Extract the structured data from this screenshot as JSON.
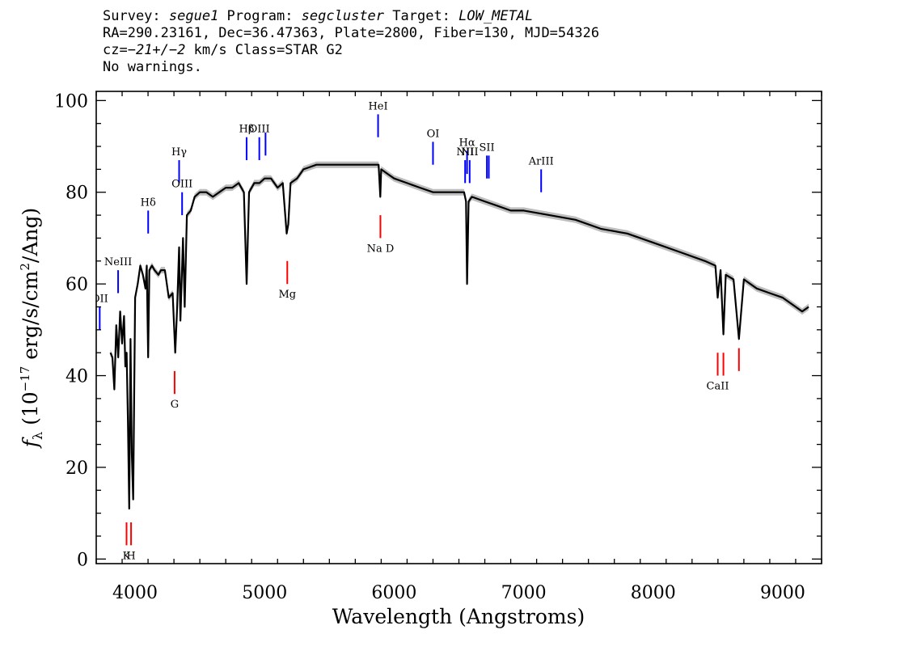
{
  "header": {
    "line1_parts": [
      "Survey: ",
      "segue1",
      " Program: ",
      "segcluster",
      " Target: ",
      "LOW_METAL"
    ],
    "line2": "RA=290.23161, Dec=36.47363, Plate=2800, Fiber=130, MJD=54326",
    "line3_parts": [
      "cz=",
      "−21+/−2",
      " km/s Class=STAR G2"
    ],
    "line4": "No warnings."
  },
  "chart_data": {
    "type": "line",
    "xlabel": "Wavelength (Angstroms)",
    "ylabel": "fλ (10⁻¹⁷ erg/s/cm²/Ang)",
    "xlim": [
      3700,
      9300
    ],
    "ylim": [
      -1,
      102
    ],
    "x_ticks": [
      4000,
      5000,
      6000,
      7000,
      8000,
      9000
    ],
    "y_ticks": [
      0,
      20,
      40,
      60,
      80,
      100
    ],
    "grid": false,
    "series": [
      {
        "color": "#000000",
        "error_band_color": "#bdbdbd",
        "x": [
          3810,
          3825,
          3840,
          3855,
          3870,
          3885,
          3900,
          3915,
          3925,
          3935,
          3945,
          3955,
          3965,
          3975,
          3985,
          4000,
          4020,
          4040,
          4060,
          4080,
          4090,
          4101,
          4110,
          4130,
          4150,
          4180,
          4200,
          4230,
          4260,
          4290,
          4310,
          4325,
          4340,
          4350,
          4370,
          4383,
          4400,
          4430,
          4460,
          4500,
          4550,
          4600,
          4650,
          4700,
          4750,
          4800,
          4840,
          4861,
          4880,
          4920,
          4960,
          5000,
          5050,
          5100,
          5140,
          5170,
          5183,
          5200,
          5250,
          5300,
          5400,
          5500,
          5600,
          5700,
          5800,
          5850,
          5880,
          5893,
          5900,
          5950,
          6000,
          6100,
          6200,
          6300,
          6400,
          6500,
          6540,
          6555,
          6563,
          6575,
          6600,
          6700,
          6800,
          6900,
          7000,
          7200,
          7400,
          7600,
          7800,
          8000,
          8200,
          8400,
          8480,
          8498,
          8520,
          8542,
          8560,
          8620,
          8662,
          8700,
          8800,
          8900,
          9000,
          9100,
          9150,
          9200
        ],
        "y": [
          45,
          44,
          37,
          51,
          44,
          54,
          47,
          53,
          42,
          45,
          30,
          11,
          48,
          23,
          13,
          57,
          60,
          64,
          62,
          59,
          64,
          44,
          63,
          64,
          63,
          62,
          63,
          63,
          57,
          58,
          45,
          55,
          68,
          52,
          70,
          55,
          75,
          76,
          79,
          80,
          80,
          79,
          80,
          81,
          81,
          82,
          80,
          60,
          80,
          82,
          82,
          83,
          83,
          81,
          82,
          71,
          73,
          82,
          83,
          85,
          86,
          86,
          86,
          86,
          86,
          86,
          86,
          79,
          85,
          84,
          83,
          82,
          81,
          80,
          80,
          80,
          80,
          78,
          60,
          78,
          79,
          78,
          77,
          76,
          76,
          75,
          74,
          72,
          71,
          69,
          67,
          65,
          64,
          57,
          63,
          49,
          62,
          61,
          48,
          61,
          59,
          58,
          57,
          55,
          54,
          55
        ]
      }
    ],
    "emission_lines": [
      {
        "label": "OII",
        "wavelength": 3727,
        "y_bottom": 50,
        "y_top": 55
      },
      {
        "label": "NeIII",
        "wavelength": 3869,
        "y_bottom": 58,
        "y_top": 63
      },
      {
        "label": "Hδ",
        "wavelength": 4101,
        "y_bottom": 71,
        "y_top": 76
      },
      {
        "label": "Hγ",
        "wavelength": 4340,
        "y_bottom": 82,
        "y_top": 87
      },
      {
        "label": "OIII",
        "wavelength": 4363,
        "y_bottom": 75,
        "y_top": 80
      },
      {
        "label": "Hβ",
        "wavelength": 4861,
        "y_bottom": 87,
        "y_top": 92
      },
      {
        "label": "OIII",
        "wavelength": 4959,
        "y_bottom": 87,
        "y_top": 92
      },
      {
        "label": "",
        "wavelength": 5007,
        "y_bottom": 88,
        "y_top": 93
      },
      {
        "label": "HeI",
        "wavelength": 5876,
        "y_bottom": 92,
        "y_top": 97
      },
      {
        "label": "OI",
        "wavelength": 6300,
        "y_bottom": 86,
        "y_top": 91
      },
      {
        "label": "NII",
        "wavelength": 6548,
        "y_bottom": 82,
        "y_top": 87
      },
      {
        "label": "Hα",
        "wavelength": 6563,
        "y_bottom": 84,
        "y_top": 89
      },
      {
        "label": "NII",
        "wavelength": 6583,
        "y_bottom": 82,
        "y_top": 87
      },
      {
        "label": "SII",
        "wavelength": 6716,
        "y_bottom": 83,
        "y_top": 88
      },
      {
        "label": "",
        "wavelength": 6731,
        "y_bottom": 83,
        "y_top": 88
      },
      {
        "label": "ArIII",
        "wavelength": 7135,
        "y_bottom": 80,
        "y_top": 85
      }
    ],
    "absorption_lines": [
      {
        "label": "K",
        "wavelength": 3934,
        "y_bottom": 3,
        "y_top": 8
      },
      {
        "label": "H",
        "wavelength": 3969,
        "y_bottom": 3,
        "y_top": 8
      },
      {
        "label": "G",
        "wavelength": 4305,
        "y_bottom": 36,
        "y_top": 41
      },
      {
        "label": "Mg",
        "wavelength": 5175,
        "y_bottom": 60,
        "y_top": 65
      },
      {
        "label": "Na D",
        "wavelength": 5894,
        "y_bottom": 70,
        "y_top": 75
      },
      {
        "label": "CaII",
        "wavelength": 8498,
        "y_bottom": 40,
        "y_top": 45
      },
      {
        "label": "",
        "wavelength": 8542,
        "y_bottom": 40,
        "y_top": 45
      },
      {
        "label": "",
        "wavelength": 8662,
        "y_bottom": 41,
        "y_top": 46
      }
    ],
    "emission_color": "#0000ff",
    "absorption_color": "#ff0000"
  }
}
